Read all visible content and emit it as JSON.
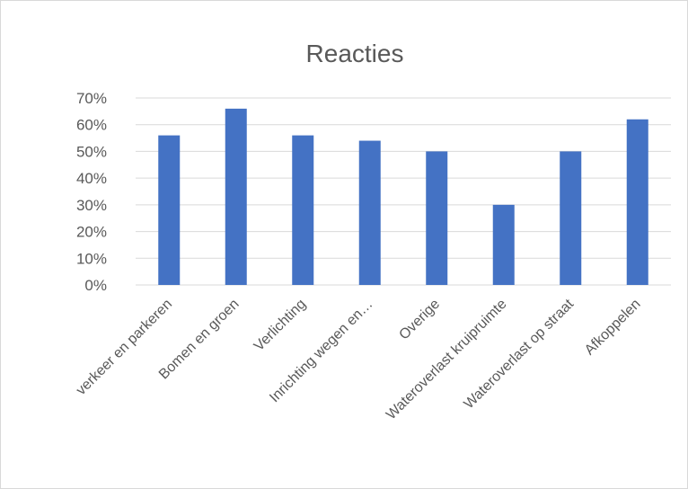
{
  "chart_data": {
    "type": "bar",
    "title": "Reacties",
    "categories": [
      "verkeer en parkeren",
      "Bomen en groen",
      "Verlichting",
      "Inrichting wegen en…",
      "Overige",
      "Wateroverlast kruipruimte",
      "Wateroverlast op straat",
      "Afkoppelen"
    ],
    "series": [
      {
        "values": [
          0.56,
          0.66,
          0.56,
          0.54,
          0.5,
          0.3,
          0.5,
          0.62
        ]
      }
    ],
    "yticks": [
      "0%",
      "10%",
      "20%",
      "30%",
      "40%",
      "50%",
      "60%",
      "70%"
    ],
    "ylim": [
      0,
      0.7
    ],
    "grid": true,
    "bar_color": "#4472c4",
    "xlabel": "",
    "ylabel": ""
  }
}
